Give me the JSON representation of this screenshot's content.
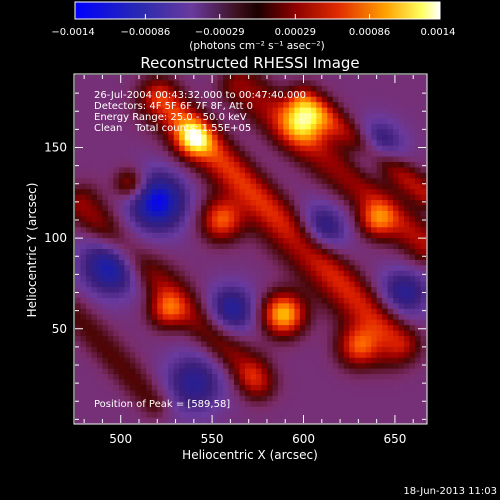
{
  "chart_data": {
    "type": "heatmap",
    "title": "Reconstructed RHESSI Image",
    "xlabel": "Heliocentric X (arcsec)",
    "ylabel": "Heliocentric Y (arcsec)",
    "xlim": [
      475,
      667
    ],
    "ylim": [
      -2,
      190
    ],
    "xticks": [
      500,
      550,
      600,
      650
    ],
    "yticks": [
      50,
      100,
      150
    ],
    "colorbar": {
      "unit_label": "(photons cm⁻² s⁻¹ asec⁻²)",
      "min": -0.0014,
      "max": 0.0014,
      "tick_labels": [
        "−0.0014",
        "−0.00086",
        "−0.00029",
        "0.00029",
        "0.00086",
        "0.0014"
      ],
      "tick_values": [
        -0.0014,
        -0.00086,
        -0.00029,
        0.00029,
        0.00086,
        0.0014
      ]
    },
    "annotations": [
      "26-Jul-2004 00:43:32.000 to 00:47:40.000",
      "Detectors: 4F 5F 6F 7F 8F, Att 0",
      "Energy Range: 25.0 - 50.0 keV",
      "Clean    Total counts: 1.55E+05"
    ],
    "peak": {
      "label": "Position of Peak = [589,58]",
      "x": 589,
      "y": 58
    },
    "timestamp": "18-Jun-2013 11:03",
    "ridges": [
      {
        "x0": 480,
        "y0": 120,
        "x1": 570,
        "y1": 30,
        "amp": 0.0009,
        "w": 7
      },
      {
        "x0": 520,
        "y0": 175,
        "x1": 650,
        "y1": 40,
        "amp": 0.0013,
        "w": 8
      },
      {
        "x0": 565,
        "y0": 185,
        "x1": 665,
        "y1": 95,
        "amp": 0.0011,
        "w": 7
      },
      {
        "x0": 475,
        "y0": 60,
        "x1": 520,
        "y1": 10,
        "amp": 0.0006,
        "w": 6
      },
      {
        "x0": 600,
        "y0": 175,
        "x1": 667,
        "y1": 125,
        "amp": 0.0007,
        "w": 6
      }
    ],
    "blobs": [
      {
        "x": 589,
        "y": 58,
        "amp": 0.0014,
        "s": 8
      },
      {
        "x": 600,
        "y": 165,
        "amp": 0.0012,
        "s": 9
      },
      {
        "x": 540,
        "y": 155,
        "amp": 0.0011,
        "s": 7
      },
      {
        "x": 555,
        "y": 110,
        "amp": 0.001,
        "s": 8
      },
      {
        "x": 525,
        "y": 60,
        "amp": 0.0008,
        "s": 7
      },
      {
        "x": 630,
        "y": 40,
        "amp": 0.0009,
        "s": 8
      },
      {
        "x": 640,
        "y": 110,
        "amp": 0.0008,
        "s": 7
      },
      {
        "x": 505,
        "y": 130,
        "amp": 0.0007,
        "s": 6
      },
      {
        "x": 575,
        "y": 20,
        "amp": 0.0006,
        "s": 7
      },
      {
        "x": 520,
        "y": 120,
        "amp": -0.0009,
        "s": 12
      },
      {
        "x": 495,
        "y": 85,
        "amp": -0.0008,
        "s": 12
      },
      {
        "x": 560,
        "y": 60,
        "amp": -0.0007,
        "s": 10
      },
      {
        "x": 610,
        "y": 105,
        "amp": -0.0006,
        "s": 10
      },
      {
        "x": 640,
        "y": 150,
        "amp": -0.0007,
        "s": 10
      },
      {
        "x": 540,
        "y": 20,
        "amp": -0.0006,
        "s": 12
      },
      {
        "x": 655,
        "y": 70,
        "amp": -0.0006,
        "s": 10
      }
    ],
    "baseline": -0.00045,
    "colormap": [
      "#0000ff",
      "#2020a0",
      "#3a1e7a",
      "#6a3a9e",
      "#7a2c6a",
      "#4a0606",
      "#9a0000",
      "#dd2000",
      "#ff6600",
      "#ffb000",
      "#ffff40",
      "#ffffff"
    ],
    "grid": false,
    "legend": "none"
  }
}
